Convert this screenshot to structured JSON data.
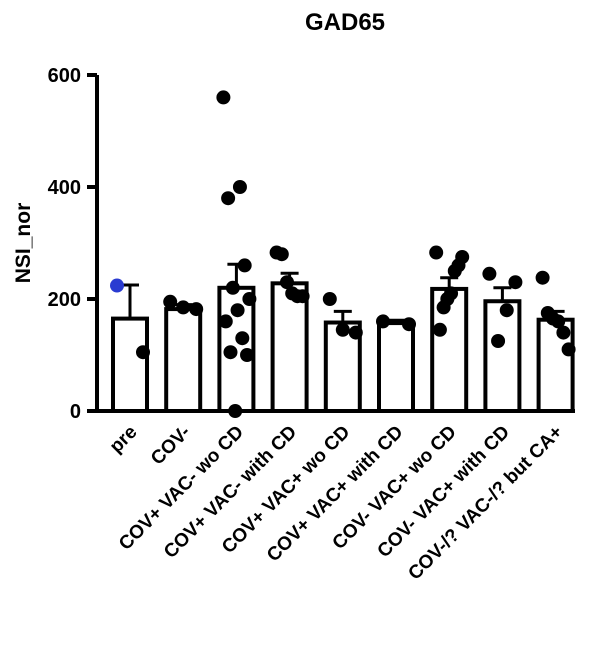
{
  "chart_data": {
    "type": "bar",
    "title": "GAD65",
    "ylabel": "NSI_nor",
    "categories": [
      "pre",
      "COV-",
      "COV+ VAC- wo CD",
      "COV+ VAC- with CD",
      "COV+ VAC+ wo CD",
      "COV+ VAC+ with CD",
      "COV- VAC+ wo CD",
      "COV- VAC+ with CD",
      "COV-/? VAC-/? but CA+"
    ],
    "values": [
      165,
      182,
      220,
      228,
      158,
      157,
      218,
      196,
      163
    ],
    "errors": [
      60,
      8,
      42,
      18,
      20,
      5,
      20,
      24,
      15
    ],
    "points": [
      [
        224,
        105
      ],
      [
        195,
        185,
        182
      ],
      [
        560,
        400,
        380,
        260,
        220,
        200,
        180,
        160,
        130,
        105,
        100,
        0
      ],
      [
        283,
        280,
        230,
        210,
        205,
        205
      ],
      [
        200,
        145,
        140
      ],
      [
        160,
        155
      ],
      [
        283,
        275,
        260,
        250,
        210,
        200,
        185,
        145
      ],
      [
        245,
        230,
        180,
        125
      ],
      [
        238,
        175,
        165,
        160,
        140,
        110
      ]
    ],
    "point_color": "#000000",
    "highlight_color": "#2a3bd1",
    "highlight_point": "pre",
    "bar_color": "#ffffff",
    "edge_color": "#000000",
    "ylim": [
      0,
      600
    ],
    "yticks": [
      0,
      200,
      400,
      600
    ]
  }
}
